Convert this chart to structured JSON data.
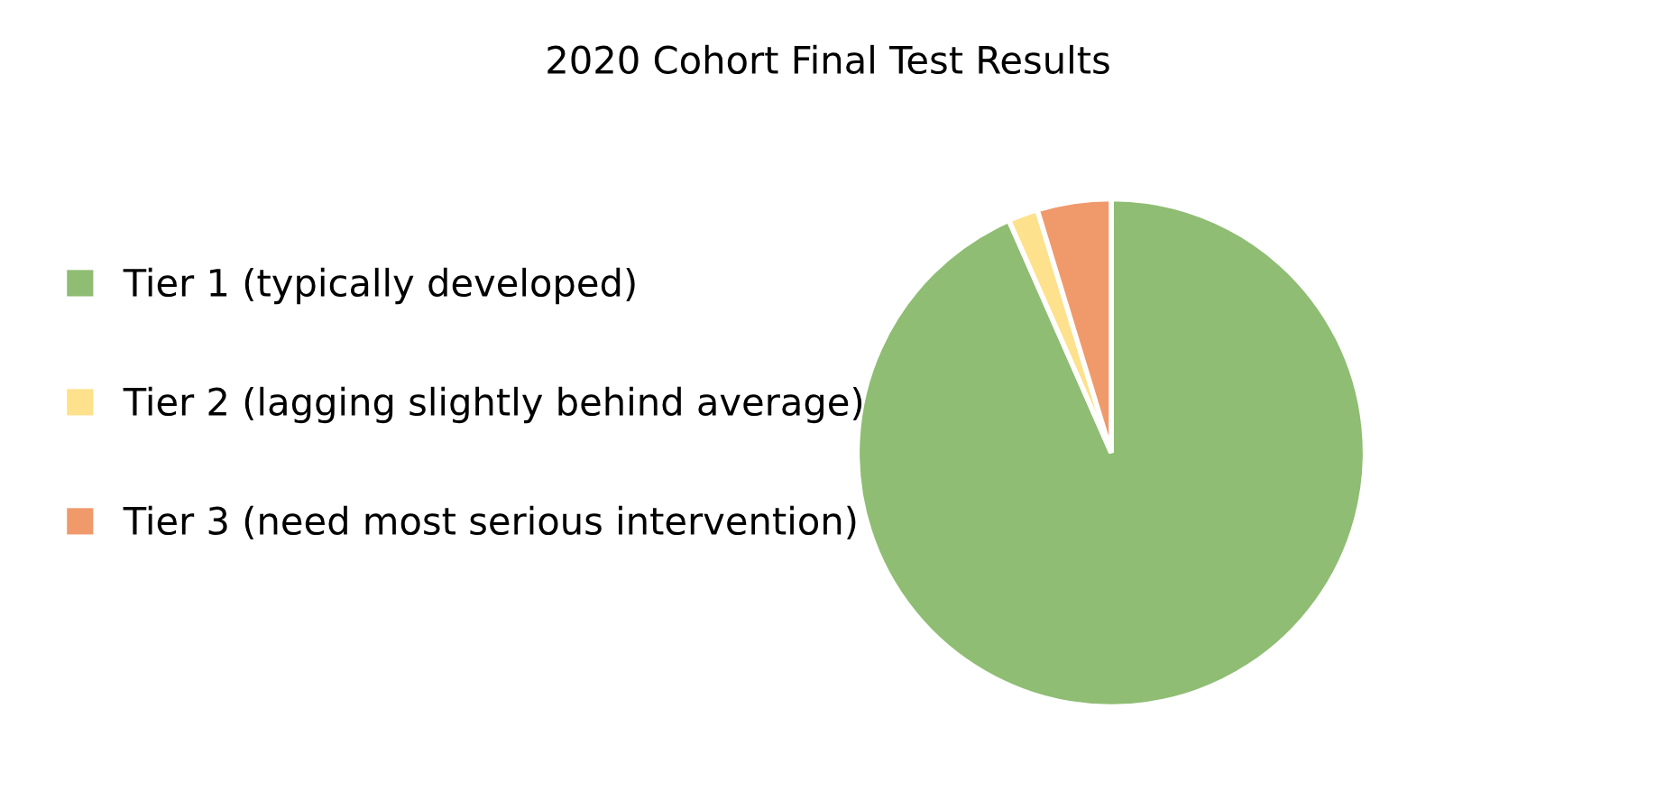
{
  "chart_data": {
    "type": "pie",
    "title": "2020 Cohort Final Test Results",
    "categories": [
      "Tier 1 (typically developed)",
      "Tier 2 (lagging slightly behind average)",
      "Tier 3 (need most serious intervention)"
    ],
    "values": [
      93.4,
      1.9,
      4.7
    ],
    "colors": [
      "#8fbd73",
      "#fde18c",
      "#f0996b"
    ],
    "legend": "left"
  }
}
